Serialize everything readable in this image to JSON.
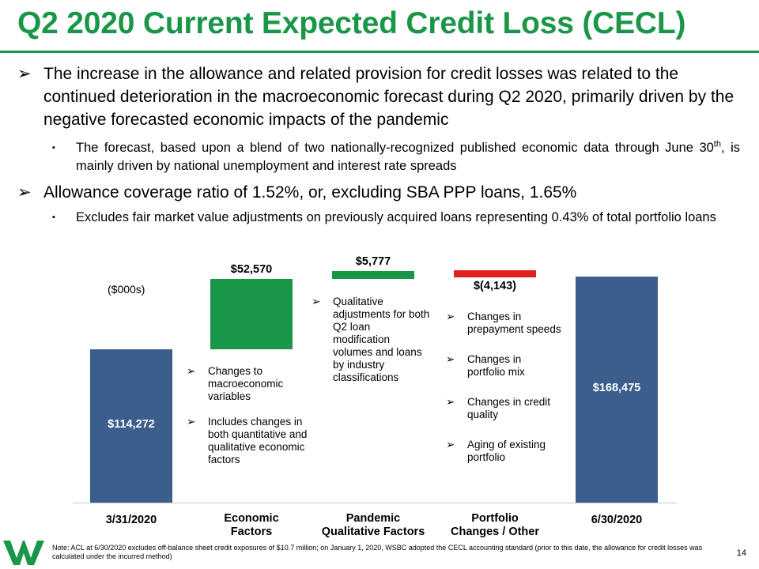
{
  "title": "Q2 2020 Current Expected Credit Loss (CECL)",
  "bullets": [
    {
      "marker": "➢",
      "text": "The increase in the allowance and related provision for credit losses was related to the continued deterioration in the macroeconomic forecast during Q2 2020, primarily driven by the negative forecasted economic impacts of the pandemic"
    },
    {
      "marker": "▪",
      "text_before": "The forecast, based upon a blend of two nationally-recognized published economic data through June 30",
      "sup": "th",
      "text_after": ", is mainly driven by national unemployment and interest rate spreads"
    },
    {
      "marker": "➢",
      "text": "Allowance coverage ratio of 1.52%, or, excluding SBA PPP loans, 1.65%"
    },
    {
      "marker": "▪",
      "text": "Excludes fair market value adjustments on previously acquired loans representing 0.43% of total portfolio loans"
    }
  ],
  "chart_data": {
    "type": "bar",
    "subtype": "waterfall",
    "units_label": "($000s)",
    "categories": [
      "3/31/2020",
      "Economic Factors",
      "Pandemic Qualitative Factors",
      "Portfolio Changes / Other",
      "6/30/2020"
    ],
    "values": [
      114272,
      52570,
      5777,
      -4143,
      168475
    ],
    "value_labels": [
      "$114,272",
      "$52,570",
      "$5,777",
      "$(4,143)",
      "$168,475"
    ],
    "bar_kinds": [
      "total",
      "increase",
      "increase",
      "decrease",
      "total"
    ],
    "colors": {
      "total": "#3b5e8c",
      "increase": "#1a9648",
      "decrease": "#e02020"
    },
    "legend": "none",
    "grid": false
  },
  "annotations": {
    "economic": [
      "Changes to macroeconomic variables",
      "Includes changes in both quantitative and qualitative economic factors"
    ],
    "pandemic": [
      "Qualitative adjustments for both Q2 loan modification volumes and loans by industry classifications"
    ],
    "portfolio": [
      "Changes in prepayment speeds",
      "Changes in portfolio mix",
      "Changes in credit quality",
      "Aging of existing portfolio"
    ],
    "marker": "➢"
  },
  "footnote": "Note: ACL at 6/30/2020 excludes off-balance sheet credit exposures of $10.7 million; on January 1, 2020, WSBC adopted the CECL accounting standard (prior to this date, the allowance for credit losses was calculated under the incurred method)",
  "page_number": "14"
}
